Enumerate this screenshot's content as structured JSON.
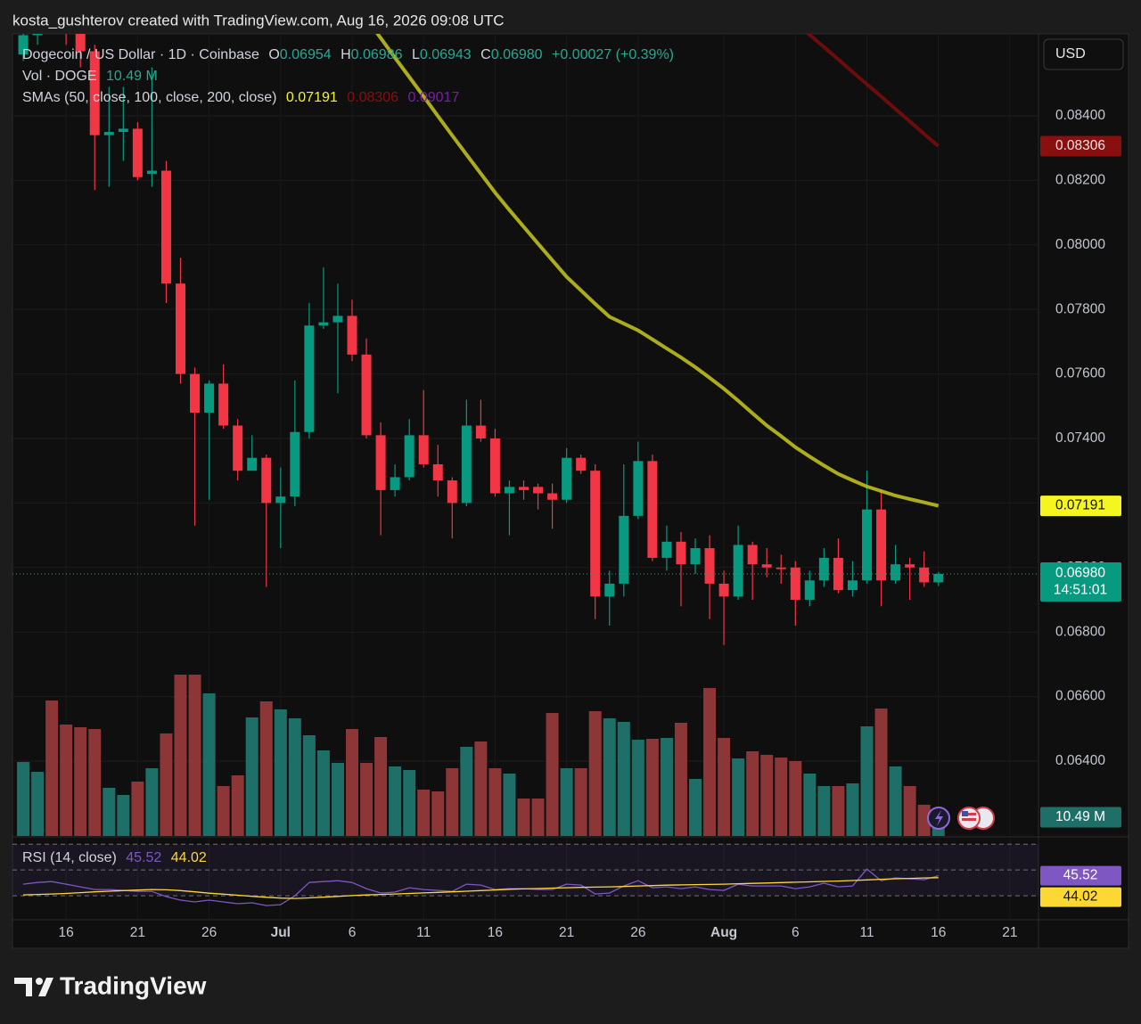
{
  "header": {
    "credit": "kosta_gushterov created with TradingView.com, Aug 16, 2026 09:08 UTC"
  },
  "footer": {
    "brand": "TradingView"
  },
  "chart_data": [
    {
      "type": "candlestick",
      "title": "Dogecoin / US Dollar · 1D · Coinbase",
      "currency": "USD",
      "countdown": "14:51:01",
      "up_color": "#089981",
      "down_color": "#f23645",
      "ohlc_legend": [
        {
          "key": "O",
          "text": "0.06954"
        },
        {
          "key": "H",
          "text": "0.06986"
        },
        {
          "key": "L",
          "text": "0.06943"
        },
        {
          "key": "C",
          "text": "0.06980"
        }
      ],
      "change_label": "+0.00027 (+0.39%)",
      "x": [
        "2026-06-13",
        "2026-06-14",
        "2026-06-15",
        "2026-06-16",
        "2026-06-17",
        "2026-06-18",
        "2026-06-19",
        "2026-06-20",
        "2026-06-21",
        "2026-06-22",
        "2026-06-23",
        "2026-06-24",
        "2026-06-25",
        "2026-06-26",
        "2026-06-27",
        "2026-06-28",
        "2026-06-29",
        "2026-06-30",
        "2026-07-01",
        "2026-07-02",
        "2026-07-03",
        "2026-07-04",
        "2026-07-05",
        "2026-07-06",
        "2026-07-07",
        "2026-07-08",
        "2026-07-09",
        "2026-07-10",
        "2026-07-11",
        "2026-07-12",
        "2026-07-13",
        "2026-07-14",
        "2026-07-15",
        "2026-07-16",
        "2026-07-17",
        "2026-07-18",
        "2026-07-19",
        "2026-07-20",
        "2026-07-21",
        "2026-07-22",
        "2026-07-23",
        "2026-07-24",
        "2026-07-25",
        "2026-07-26",
        "2026-07-27",
        "2026-07-28",
        "2026-07-29",
        "2026-07-30",
        "2026-07-31",
        "2026-08-01",
        "2026-08-02",
        "2026-08-03",
        "2026-08-04",
        "2026-08-05",
        "2026-08-06",
        "2026-08-07",
        "2026-08-08",
        "2026-08-09",
        "2026-08-10",
        "2026-08-11",
        "2026-08-12",
        "2026-08-13",
        "2026-08-14",
        "2026-08-15",
        "2026-08-16"
      ],
      "open": [
        0.0859,
        0.0865,
        0.0874,
        0.0869,
        0.0866,
        0.086,
        0.0834,
        0.0835,
        0.0836,
        0.0822,
        0.0823,
        0.0788,
        0.076,
        0.0748,
        0.0757,
        0.0744,
        0.073,
        0.0734,
        0.072,
        0.0722,
        0.0742,
        0.0775,
        0.0776,
        0.0778,
        0.0766,
        0.0741,
        0.0724,
        0.0728,
        0.0741,
        0.0732,
        0.0727,
        0.072,
        0.0744,
        0.074,
        0.0723,
        0.0725,
        0.0725,
        0.0723,
        0.0721,
        0.0734,
        0.073,
        0.0691,
        0.0695,
        0.0716,
        0.0733,
        0.0703,
        0.0708,
        0.0701,
        0.0706,
        0.0695,
        0.0691,
        0.0707,
        0.0701,
        0.07,
        0.07,
        0.069,
        0.0696,
        0.0703,
        0.0693,
        0.0696,
        0.0718,
        0.0696,
        0.0701,
        0.07,
        0.06954
      ],
      "high": [
        0.0866,
        0.0878,
        0.088,
        0.0874,
        0.0868,
        0.0862,
        0.0849,
        0.0849,
        0.0838,
        0.0855,
        0.0826,
        0.0796,
        0.0762,
        0.0758,
        0.0763,
        0.0746,
        0.0741,
        0.0735,
        0.0731,
        0.0758,
        0.0782,
        0.0793,
        0.0788,
        0.0783,
        0.0771,
        0.0745,
        0.0732,
        0.0746,
        0.0755,
        0.0738,
        0.0728,
        0.0752,
        0.0752,
        0.0743,
        0.0727,
        0.0727,
        0.0726,
        0.0726,
        0.0737,
        0.0735,
        0.0732,
        0.0699,
        0.0732,
        0.0739,
        0.0735,
        0.0713,
        0.0711,
        0.0709,
        0.071,
        0.0699,
        0.0713,
        0.0708,
        0.0706,
        0.0704,
        0.0702,
        0.0699,
        0.0706,
        0.0709,
        0.0702,
        0.073,
        0.0724,
        0.0707,
        0.0703,
        0.0705,
        0.06986
      ],
      "low": [
        0.0857,
        0.0862,
        0.0866,
        0.0862,
        0.0855,
        0.0817,
        0.0818,
        0.0826,
        0.082,
        0.0818,
        0.0782,
        0.0757,
        0.0713,
        0.0721,
        0.0743,
        0.0727,
        0.073,
        0.0694,
        0.0706,
        0.0719,
        0.074,
        0.0774,
        0.0754,
        0.0764,
        0.074,
        0.071,
        0.0722,
        0.0727,
        0.0731,
        0.0722,
        0.0709,
        0.0719,
        0.0739,
        0.0722,
        0.071,
        0.0721,
        0.0718,
        0.0712,
        0.072,
        0.0729,
        0.0684,
        0.0682,
        0.0691,
        0.0715,
        0.0702,
        0.0699,
        0.0688,
        0.0698,
        0.0684,
        0.0676,
        0.069,
        0.069,
        0.0697,
        0.0695,
        0.0682,
        0.0688,
        0.0694,
        0.0692,
        0.0691,
        0.0695,
        0.0688,
        0.0695,
        0.069,
        0.0694,
        0.06943
      ],
      "close": [
        0.0865,
        0.0874,
        0.0869,
        0.0866,
        0.086,
        0.0834,
        0.0835,
        0.0836,
        0.0821,
        0.0823,
        0.0788,
        0.076,
        0.0748,
        0.0757,
        0.0744,
        0.073,
        0.0734,
        0.072,
        0.0722,
        0.0742,
        0.0775,
        0.0776,
        0.0778,
        0.0766,
        0.0741,
        0.0724,
        0.0728,
        0.0741,
        0.0732,
        0.0727,
        0.072,
        0.0744,
        0.074,
        0.0723,
        0.0725,
        0.0724,
        0.0723,
        0.0721,
        0.0734,
        0.073,
        0.0691,
        0.0695,
        0.0716,
        0.0733,
        0.0703,
        0.0708,
        0.0701,
        0.0706,
        0.0695,
        0.0691,
        0.0707,
        0.0701,
        0.07,
        0.06995,
        0.069,
        0.0696,
        0.0703,
        0.0693,
        0.0696,
        0.0718,
        0.0696,
        0.0701,
        0.07,
        0.06954,
        0.0698
      ],
      "volume": {
        "name": "Vol · DOGE",
        "up_color": "#1f6f69",
        "down_color": "#8c3638",
        "values": [
          41.5,
          36,
          76,
          62.5,
          61,
          60,
          27,
          23,
          30.5,
          38,
          57.5,
          90.5,
          90.5,
          80,
          28,
          34,
          66.5,
          75.5,
          71,
          66,
          56.5,
          48,
          41,
          60,
          41,
          55.5,
          39,
          37,
          26,
          25,
          38,
          50,
          53,
          38,
          35,
          21,
          21,
          69,
          38,
          38,
          70,
          66,
          64,
          54,
          54.5,
          55,
          63.5,
          32,
          83,
          55,
          43.5,
          47.5,
          45.5,
          44,
          42,
          35,
          28,
          28,
          29.5,
          61.5,
          71.5,
          39,
          28,
          17.5,
          10.49
        ],
        "value_labels": [
          null,
          null,
          null,
          null,
          null,
          null,
          null,
          null,
          null,
          null,
          null,
          null,
          null,
          null,
          null,
          null,
          null,
          null,
          null,
          null,
          null,
          null,
          null,
          null,
          null,
          null,
          null,
          null,
          null,
          null,
          null,
          null,
          null,
          null,
          null,
          null,
          null,
          null,
          null,
          null,
          null,
          null,
          null,
          null,
          null,
          null,
          null,
          null,
          null,
          null,
          null,
          null,
          null,
          null,
          null,
          null,
          null,
          null,
          null,
          null,
          null,
          null,
          null,
          null,
          "10.49 M"
        ]
      },
      "sma": {
        "name": "SMAs (50, close, 100, close, 200, close)",
        "series": [
          {
            "color": "#c9c91d",
            "badge_color": "#f5f520",
            "values": [
              null,
              null,
              null,
              null,
              null,
              null,
              null,
              null,
              null,
              null,
              null,
              null,
              null,
              null,
              null,
              null,
              null,
              null,
              null,
              null,
              null,
              null,
              null,
              null,
              0.08701,
              0.08641,
              0.0858,
              0.0852,
              0.0846,
              0.08399,
              0.08339,
              0.0828,
              0.08221,
              0.08162,
              0.08108,
              0.08056,
              0.08004,
              0.07952,
              0.07901,
              0.07859,
              0.07817,
              0.07777,
              0.07756,
              0.07735,
              0.07707,
              0.07679,
              0.07651,
              0.07621,
              0.07588,
              0.07554,
              0.07517,
              0.07478,
              0.0744,
              0.07407,
              0.07373,
              0.07344,
              0.07316,
              0.0729,
              0.0727,
              0.07251,
              0.07237,
              0.07223,
              0.07212,
              0.07202,
              0.07191
            ]
          },
          {
            "color": "#7d0c0c",
            "badge_color": "#8a0f0f",
            "values": [
              null,
              null,
              null,
              null,
              null,
              null,
              null,
              null,
              null,
              null,
              null,
              null,
              null,
              null,
              null,
              null,
              null,
              null,
              null,
              null,
              null,
              null,
              null,
              null,
              null,
              null,
              null,
              null,
              null,
              null,
              null,
              null,
              null,
              null,
              null,
              null,
              null,
              null,
              null,
              null,
              null,
              null,
              null,
              null,
              null,
              null,
              null,
              null,
              null,
              null,
              null,
              null,
              null,
              null,
              0.08692,
              0.08651,
              0.08613,
              0.08575,
              0.08536,
              0.08498,
              0.0846,
              0.08421,
              0.08383,
              0.08344,
              0.08306
            ]
          },
          {
            "color": "#7b1fa2",
            "badge_color": "#7b1fa2",
            "values": [
              null,
              null,
              null,
              null,
              null,
              null,
              null,
              null,
              null,
              null,
              null,
              null,
              null,
              null,
              null,
              null,
              null,
              null,
              null,
              null,
              null,
              null,
              null,
              null,
              null,
              null,
              null,
              null,
              null,
              null,
              null,
              null,
              null,
              null,
              null,
              null,
              null,
              null,
              null,
              null,
              null,
              null,
              null,
              null,
              null,
              null,
              null,
              null,
              null,
              null,
              null,
              null,
              null,
              null,
              null,
              null,
              null,
              null,
              null,
              null,
              null,
              null,
              null,
              null,
              0.09017
            ]
          }
        ]
      },
      "xlim": [
        "2026-06-12",
        "2026-08-23"
      ],
      "xticks": [
        {
          "value": "2026-06-16",
          "label": "16"
        },
        {
          "value": "2026-06-21",
          "label": "21"
        },
        {
          "value": "2026-06-26",
          "label": "26"
        },
        {
          "value": "2026-07-01",
          "label": "Jul"
        },
        {
          "value": "2026-07-06",
          "label": "6"
        },
        {
          "value": "2026-07-11",
          "label": "11"
        },
        {
          "value": "2026-07-16",
          "label": "16"
        },
        {
          "value": "2026-07-21",
          "label": "21"
        },
        {
          "value": "2026-07-26",
          "label": "26"
        },
        {
          "value": "2026-08-01",
          "label": "Aug"
        },
        {
          "value": "2026-08-06",
          "label": "6"
        },
        {
          "value": "2026-08-11",
          "label": "11"
        },
        {
          "value": "2026-08-16",
          "label": "16"
        },
        {
          "value": "2026-08-21",
          "label": "21"
        }
      ],
      "ylim": [
        0.06168,
        0.08654
      ],
      "yticks": [
        {
          "value": 0.064,
          "label": "0.06400"
        },
        {
          "value": 0.066,
          "label": "0.06600"
        },
        {
          "value": 0.068,
          "label": "0.06800"
        },
        {
          "value": 0.07,
          "label": "0.07000"
        },
        {
          "value": 0.072,
          "label": "0.07200"
        },
        {
          "value": 0.074,
          "label": "0.07400"
        },
        {
          "value": 0.076,
          "label": "0.07600"
        },
        {
          "value": 0.078,
          "label": "0.07800"
        },
        {
          "value": 0.08,
          "label": "0.08000"
        },
        {
          "value": 0.082,
          "label": "0.08200"
        },
        {
          "value": 0.084,
          "label": "0.08400"
        }
      ],
      "grid": true
    },
    {
      "type": "line",
      "title": "RSI (14, close)",
      "series": [
        {
          "color": "#7e57c2",
          "values": [
            39.0,
            40.3,
            41.0,
            39.0,
            36.9,
            34.8,
            34.8,
            34.1,
            33.4,
            33.4,
            29.3,
            26.6,
            25.2,
            26.6,
            25.2,
            23.8,
            24.5,
            22.4,
            23.1,
            30.0,
            40.3,
            41.0,
            41.7,
            40.3,
            35.5,
            32.1,
            32.8,
            36.2,
            34.8,
            34.1,
            33.4,
            39.0,
            38.3,
            34.8,
            35.5,
            35.5,
            34.8,
            34.8,
            39.0,
            38.3,
            31.4,
            32.1,
            37.6,
            41.7,
            36.2,
            36.9,
            35.5,
            36.9,
            34.8,
            34.1,
            39.0,
            37.6,
            37.6,
            37.6,
            35.5,
            36.9,
            39.7,
            36.9,
            37.6,
            50.7,
            41.7,
            43.8,
            43.1,
            42.4,
            45.52
          ]
        },
        {
          "color": "#fdd835",
          "values": [
            30.7,
            31.0,
            31.4,
            31.8,
            32.4,
            33.0,
            33.5,
            34.0,
            34.4,
            34.8,
            34.6,
            34.0,
            33.0,
            32.0,
            31.2,
            30.4,
            29.6,
            28.8,
            28.2,
            27.9,
            28.3,
            28.9,
            29.5,
            30.1,
            30.6,
            31.0,
            31.4,
            31.8,
            32.2,
            32.6,
            33.0,
            33.5,
            34.0,
            34.5,
            35.0,
            35.3,
            35.6,
            35.9,
            36.2,
            36.5,
            36.7,
            36.9,
            37.2,
            37.6,
            37.9,
            38.2,
            38.4,
            38.6,
            38.8,
            39.0,
            39.3,
            39.6,
            39.9,
            40.2,
            40.5,
            40.8,
            41.1,
            41.4,
            41.8,
            42.3,
            42.8,
            43.2,
            43.5,
            43.8,
            44.02
          ]
        }
      ],
      "ylim": [
        10,
        75
      ],
      "bands": [
        30,
        50,
        70
      ]
    }
  ]
}
